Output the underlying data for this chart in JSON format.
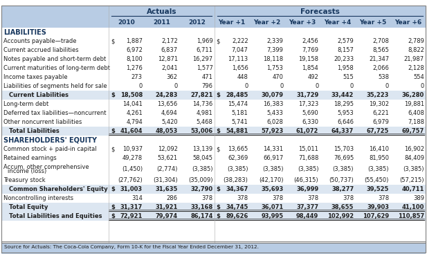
{
  "header_actuals": "Actuals",
  "header_forecasts": "Forecasts",
  "col_headers": [
    "2010",
    "2011",
    "2012",
    "Year +1",
    "Year +2",
    "Year +3",
    "Year +4",
    "Year +5",
    "Year +6"
  ],
  "section1_label": "LIABILITIES",
  "section2_label": "SHAREHOLDERS' EQUITY",
  "footer": "Source for Actuals: The Coca-Cola Company, Form 10-K for the Fiscal Year Ended December 31, 2012.",
  "rows": [
    {
      "label": "Accounts payable—trade",
      "bold": false,
      "indent": false,
      "dollar": true,
      "underline": false,
      "values": [
        "1,887",
        "2,172",
        "1,969",
        "2,222",
        "2,339",
        "2,456",
        "2,579",
        "2,708",
        "2,789"
      ]
    },
    {
      "label": "Current accrued liabilities",
      "bold": false,
      "indent": false,
      "dollar": false,
      "underline": false,
      "values": [
        "6,972",
        "6,837",
        "6,711",
        "7,047",
        "7,399",
        "7,769",
        "8,157",
        "8,565",
        "8,822"
      ]
    },
    {
      "label": "Notes payable and short-term debt",
      "bold": false,
      "indent": false,
      "dollar": false,
      "underline": false,
      "values": [
        "8,100",
        "12,871",
        "16,297",
        "17,113",
        "18,118",
        "19,158",
        "20,233",
        "21,347",
        "21,987"
      ]
    },
    {
      "label": "Current maturities of long-term debt",
      "bold": false,
      "indent": false,
      "dollar": false,
      "underline": false,
      "values": [
        "1,276",
        "2,041",
        "1,577",
        "1,656",
        "1,753",
        "1,854",
        "1,958",
        "2,066",
        "2,128"
      ]
    },
    {
      "label": "Income taxes payable",
      "bold": false,
      "indent": false,
      "dollar": false,
      "underline": false,
      "values": [
        "273",
        "362",
        "471",
        "448",
        "470",
        "492",
        "515",
        "538",
        "554"
      ]
    },
    {
      "label": "Liabilities of segments held for sale",
      "bold": false,
      "indent": false,
      "dollar": false,
      "underline": false,
      "values": [
        "0",
        "0",
        "796",
        "0",
        "0",
        "0",
        "0",
        "0",
        "0"
      ]
    },
    {
      "label": "  Current Liabilities",
      "bold": true,
      "indent": true,
      "dollar": true,
      "underline": false,
      "values": [
        "18,508",
        "24,283",
        "27,821",
        "28,485",
        "30,079",
        "31,729",
        "33,442",
        "35,223",
        "36,280"
      ]
    },
    {
      "label": "Long-term debt",
      "bold": false,
      "indent": false,
      "dollar": false,
      "underline": false,
      "values": [
        "14,041",
        "13,656",
        "14,736",
        "15,474",
        "16,383",
        "17,323",
        "18,295",
        "19,302",
        "19,881"
      ]
    },
    {
      "label": "Deferred tax liabilities—noncurrent",
      "bold": false,
      "indent": false,
      "dollar": false,
      "underline": false,
      "values": [
        "4,261",
        "4,694",
        "4,981",
        "5,181",
        "5,433",
        "5,690",
        "5,953",
        "6,221",
        "6,408"
      ]
    },
    {
      "label": "Other noncurrent liabilities",
      "bold": false,
      "indent": false,
      "dollar": false,
      "underline": false,
      "values": [
        "4,794",
        "5,420",
        "5,468",
        "5,741",
        "6,028",
        "6,330",
        "6,646",
        "6,979",
        "7,188"
      ]
    },
    {
      "label": "  Total Liabilities",
      "bold": true,
      "indent": true,
      "dollar": true,
      "underline": true,
      "values": [
        "41,604",
        "48,053",
        "53,006",
        "54,881",
        "57,923",
        "61,072",
        "64,337",
        "67,725",
        "69,757"
      ]
    },
    {
      "label": "SHAREHOLDERS_EQUITY_SECTION",
      "bold": false,
      "indent": false,
      "dollar": false,
      "underline": false,
      "values": [
        "",
        "",
        "",
        "",
        "",
        "",
        "",
        "",
        ""
      ]
    },
    {
      "label": "Common stock + paid-in capital",
      "bold": false,
      "indent": false,
      "dollar": true,
      "underline": false,
      "values": [
        "10,937",
        "12,092",
        "13,139",
        "13,665",
        "14,331",
        "15,011",
        "15,703",
        "16,410",
        "16,902"
      ]
    },
    {
      "label": "Retained earnings",
      "bold": false,
      "indent": false,
      "dollar": false,
      "underline": false,
      "values": [
        "49,278",
        "53,621",
        "58,045",
        "62,369",
        "66,917",
        "71,688",
        "76,695",
        "81,950",
        "84,409"
      ]
    },
    {
      "label": "Accum. other comprehensive\n  income (loss)",
      "bold": false,
      "indent": false,
      "dollar": false,
      "underline": false,
      "values": [
        "(1,450)",
        "(2,774)",
        "(3,385)",
        "(3,385)",
        "(3,385)",
        "(3,385)",
        "(3,385)",
        "(3,385)",
        "(3,385)"
      ]
    },
    {
      "label": "Treasury stock",
      "bold": false,
      "indent": false,
      "dollar": false,
      "underline": false,
      "values": [
        "(27,762)",
        "(31,304)",
        "(35,009)",
        "(38,283)",
        "(42,170)",
        "(46,315)",
        "(50,737)",
        "(55,450)",
        "(57,215)"
      ]
    },
    {
      "label": "  Common Shareholders' Equity",
      "bold": true,
      "indent": true,
      "dollar": true,
      "underline": false,
      "values": [
        "31,003",
        "31,635",
        "32,790",
        "34,367",
        "35,693",
        "36,999",
        "38,277",
        "39,525",
        "40,711"
      ]
    },
    {
      "label": "Noncontrolling interests",
      "bold": false,
      "indent": false,
      "dollar": false,
      "underline": false,
      "values": [
        "314",
        "286",
        "378",
        "378",
        "378",
        "378",
        "378",
        "378",
        "389"
      ]
    },
    {
      "label": "  Total Equity",
      "bold": true,
      "indent": true,
      "dollar": true,
      "underline": true,
      "values": [
        "31,317",
        "31,921",
        "33,168",
        "34,745",
        "36,071",
        "37,377",
        "38,655",
        "39,903",
        "41,100"
      ]
    },
    {
      "label": "  Total Liabilities and Equities",
      "bold": true,
      "indent": true,
      "dollar": true,
      "underline": true,
      "values": [
        "72,921",
        "79,974",
        "86,174",
        "89,626",
        "93,995",
        "98,449",
        "102,992",
        "107,629",
        "110,857"
      ]
    }
  ],
  "bg_header": "#b8cce4",
  "bg_section": "#dce6f1",
  "bg_white": "#ffffff",
  "bg_subtotal": "#dce6f1",
  "text_dark": "#1f1f1f",
  "text_blue": "#17375e",
  "border_color": "#7f7f7f",
  "header_stripe": "#4472c4"
}
